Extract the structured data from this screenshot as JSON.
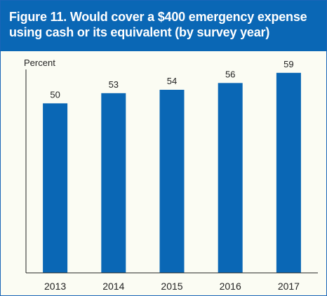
{
  "title": "Figure 11. Would cover a $400 emergency expense using cash or its equivalent (by survey year)",
  "colors": {
    "title_background": "#0a67b5",
    "title_text": "#ffffff",
    "bar": "#0a67b5",
    "axis": "#222222",
    "plot_background": "#fbfcf3"
  },
  "chart_data": {
    "type": "bar",
    "title": "Figure 11. Would cover a $400 emergency expense using cash or its equivalent (by survey year)",
    "ylabel": "Percent",
    "xlabel": "",
    "categories": [
      "2013",
      "2014",
      "2015",
      "2016",
      "2017"
    ],
    "values": [
      50,
      53,
      54,
      56,
      59
    ],
    "data_labels": [
      "50",
      "53",
      "54",
      "56",
      "59"
    ],
    "ylim": [
      0,
      60
    ],
    "grid": false,
    "legend": "none"
  }
}
